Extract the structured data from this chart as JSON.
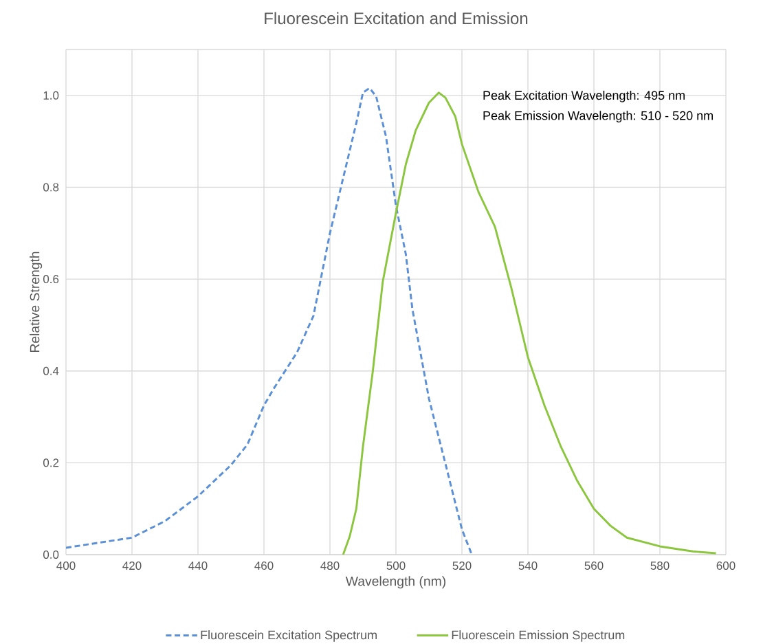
{
  "chart_data": {
    "type": "line",
    "title": "Fluorescein Excitation and Emission",
    "xlabel": "Wavelength (nm)",
    "ylabel": "Relative Strength",
    "annotations": [
      "Peak Excitation Wavelength: 495 nm",
      "Peak Emission Wavelength: 510 - 520 nm"
    ],
    "xlim": [
      400,
      600
    ],
    "xticks": [
      400,
      420,
      440,
      460,
      480,
      500,
      520,
      540,
      560,
      580,
      600
    ],
    "ylim": [
      0,
      1.1
    ],
    "yticks": [
      {
        "value": 0,
        "label": "0.0"
      },
      {
        "value": 0.2,
        "label": "0.2"
      },
      {
        "value": 0.4,
        "label": "0.4"
      },
      {
        "value": 0.6,
        "label": "0.6"
      },
      {
        "value": 0.8,
        "label": "0.8"
      },
      {
        "value": 1.0,
        "label": "1.0"
      },
      {
        "value": 1.1,
        "label": null
      }
    ],
    "grid": true,
    "legend": "bottom",
    "series": [
      {
        "name": "Fluorescein Excitation Spectrum",
        "color": "#5b8fd6",
        "line_style": "dashed",
        "x": [
          400,
          420,
          430,
          440,
          450,
          455,
          460,
          463,
          470,
          475,
          480,
          485,
          488,
          490,
          492,
          494,
          497,
          500,
          503,
          505,
          510,
          515,
          520,
          523
        ],
        "values": [
          0.015,
          0.037,
          0.073,
          0.127,
          0.195,
          0.24,
          0.325,
          0.362,
          0.44,
          0.52,
          0.7,
          0.85,
          0.94,
          1.006,
          1.016,
          0.998,
          0.91,
          0.76,
          0.654,
          0.534,
          0.34,
          0.198,
          0.055,
          0
        ]
      },
      {
        "name": "Fluorescein Emission Spectrum",
        "color": "#8cc63f",
        "line_style": "solid",
        "x": [
          484,
          486,
          488,
          490,
          493,
          496,
          500,
          503,
          506,
          510,
          513,
          515,
          518,
          520,
          525,
          530,
          535,
          540,
          545,
          550,
          555,
          560,
          565,
          570,
          580,
          590,
          597
        ],
        "values": [
          0,
          0.04,
          0.1,
          0.235,
          0.4,
          0.594,
          0.744,
          0.85,
          0.924,
          0.984,
          1.006,
          0.995,
          0.954,
          0.894,
          0.79,
          0.714,
          0.58,
          0.43,
          0.325,
          0.235,
          0.16,
          0.1,
          0.063,
          0.037,
          0.018,
          0.007,
          0.003
        ]
      }
    ]
  }
}
